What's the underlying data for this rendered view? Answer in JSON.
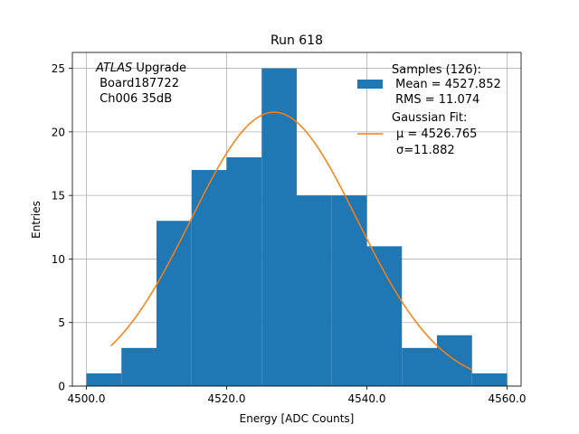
{
  "chart_data": {
    "type": "bar",
    "title": "Run 618",
    "xlabel": "Energy [ADC Counts]",
    "ylabel": "Entries",
    "xlim": [
      4498.0,
      4562.0
    ],
    "ylim": [
      0,
      26.25
    ],
    "x_ticks": [
      4500.0,
      4520.0,
      4540.0,
      4560.0
    ],
    "x_tick_labels": [
      "4500.0",
      "4520.0",
      "4540.0",
      "4560.0"
    ],
    "y_ticks": [
      0,
      5,
      10,
      15,
      20,
      25
    ],
    "y_tick_labels": [
      "0",
      "5",
      "10",
      "15",
      "20",
      "25"
    ],
    "grid": true,
    "histogram": {
      "bin_edges": [
        4500,
        4505,
        4510,
        4515,
        4520,
        4525,
        4530,
        4535,
        4540,
        4545,
        4550,
        4555,
        4560
      ],
      "counts": [
        1,
        3,
        13,
        17,
        18,
        25,
        15,
        15,
        11,
        3,
        4,
        1
      ],
      "color": "#1f77b4"
    },
    "fit": {
      "name": "Gaussian Fit",
      "mu": 4526.765,
      "sigma": 11.882,
      "amplitude": 21.55,
      "x_range": [
        4503.5,
        4555.0
      ],
      "color": "#ff7f0e"
    },
    "annotation": {
      "italic": "ATLAS",
      "line1_rest": " Upgrade",
      "line2": " Board187722",
      "line3": " Ch006 35dB"
    },
    "legend": {
      "position": "top-right",
      "samples_line1": "Samples (126):",
      "samples_line2": " Mean = 4527.852",
      "samples_line3": " RMS = 11.074",
      "fit_line1": "Gaussian Fit:",
      "fit_line2": "μ = 4526.765",
      "fit_line3": "σ=11.882"
    }
  }
}
